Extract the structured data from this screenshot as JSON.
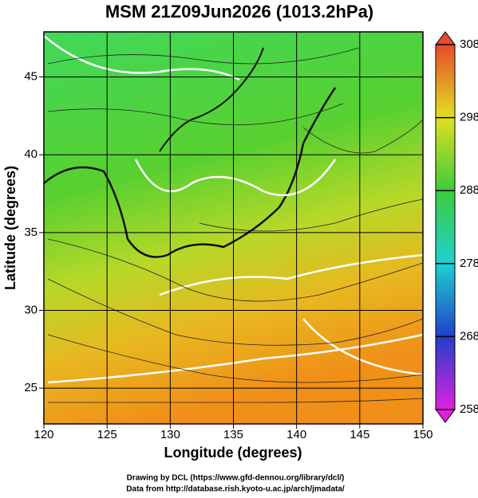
{
  "chart_data": {
    "type": "map",
    "title": "MSM 21Z09Jun2026 (1013.2hPa)",
    "x_label": "Longitude (degrees)",
    "y_label": "Latitude  (degrees)",
    "xlim": [
      120,
      150
    ],
    "xticks": [
      120,
      125,
      130,
      135,
      140,
      145,
      150
    ],
    "ylim": [
      22.7,
      47.9
    ],
    "yticks": [
      25,
      30,
      35,
      40,
      45
    ],
    "grid": true,
    "colorbar": {
      "lim": [
        258,
        308
      ],
      "ticks": [
        308,
        298,
        288,
        278,
        268,
        258
      ],
      "colors": [
        "#e84a2a",
        "#e0e020",
        "#3ccc3c",
        "#20d0d0",
        "#2040c8",
        "#e020e0"
      ]
    },
    "credits": [
      "Drawing by DCL (https://www.gfd-dennou.org/library/dcl/)",
      "Data from http://database.rish.kyoto-u.ac.jp/arch/jmadata/"
    ]
  }
}
